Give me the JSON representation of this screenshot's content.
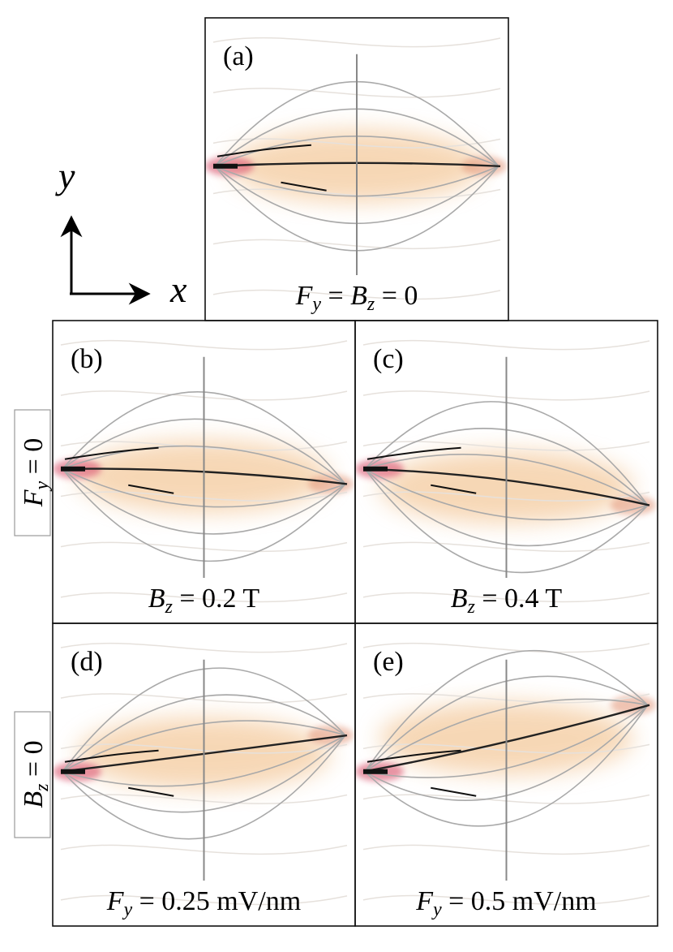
{
  "axes_arrows": {
    "x": "x",
    "y": "y"
  },
  "panels": [
    {
      "label": "(a)",
      "caption": [
        {
          "it": "F"
        },
        {
          "sub": "y"
        },
        {
          "t": " = "
        },
        {
          "it": "B"
        },
        {
          "sub": "z"
        },
        {
          "t": " = 0"
        }
      ]
    },
    {
      "label": "(b)",
      "caption": [
        {
          "it": "B"
        },
        {
          "sub": "z"
        },
        {
          "t": " = 0.2 T"
        }
      ]
    },
    {
      "label": "(c)",
      "caption": [
        {
          "it": "B"
        },
        {
          "sub": "z"
        },
        {
          "t": " = 0.4 T"
        }
      ]
    },
    {
      "label": "(d)",
      "caption": [
        {
          "it": "F"
        },
        {
          "sub": "y"
        },
        {
          "t": " = 0.25 mV/nm"
        }
      ]
    },
    {
      "label": "(e)",
      "caption": [
        {
          "it": "F"
        },
        {
          "sub": "y"
        },
        {
          "t": " = 0.5 mV/nm"
        }
      ]
    }
  ],
  "row_labels": [
    [
      {
        "it": "F"
      },
      {
        "sub": "y"
      },
      {
        "t": " = 0"
      }
    ],
    [
      {
        "it": "B"
      },
      {
        "sub": "z"
      },
      {
        "t": " = 0"
      }
    ]
  ]
}
